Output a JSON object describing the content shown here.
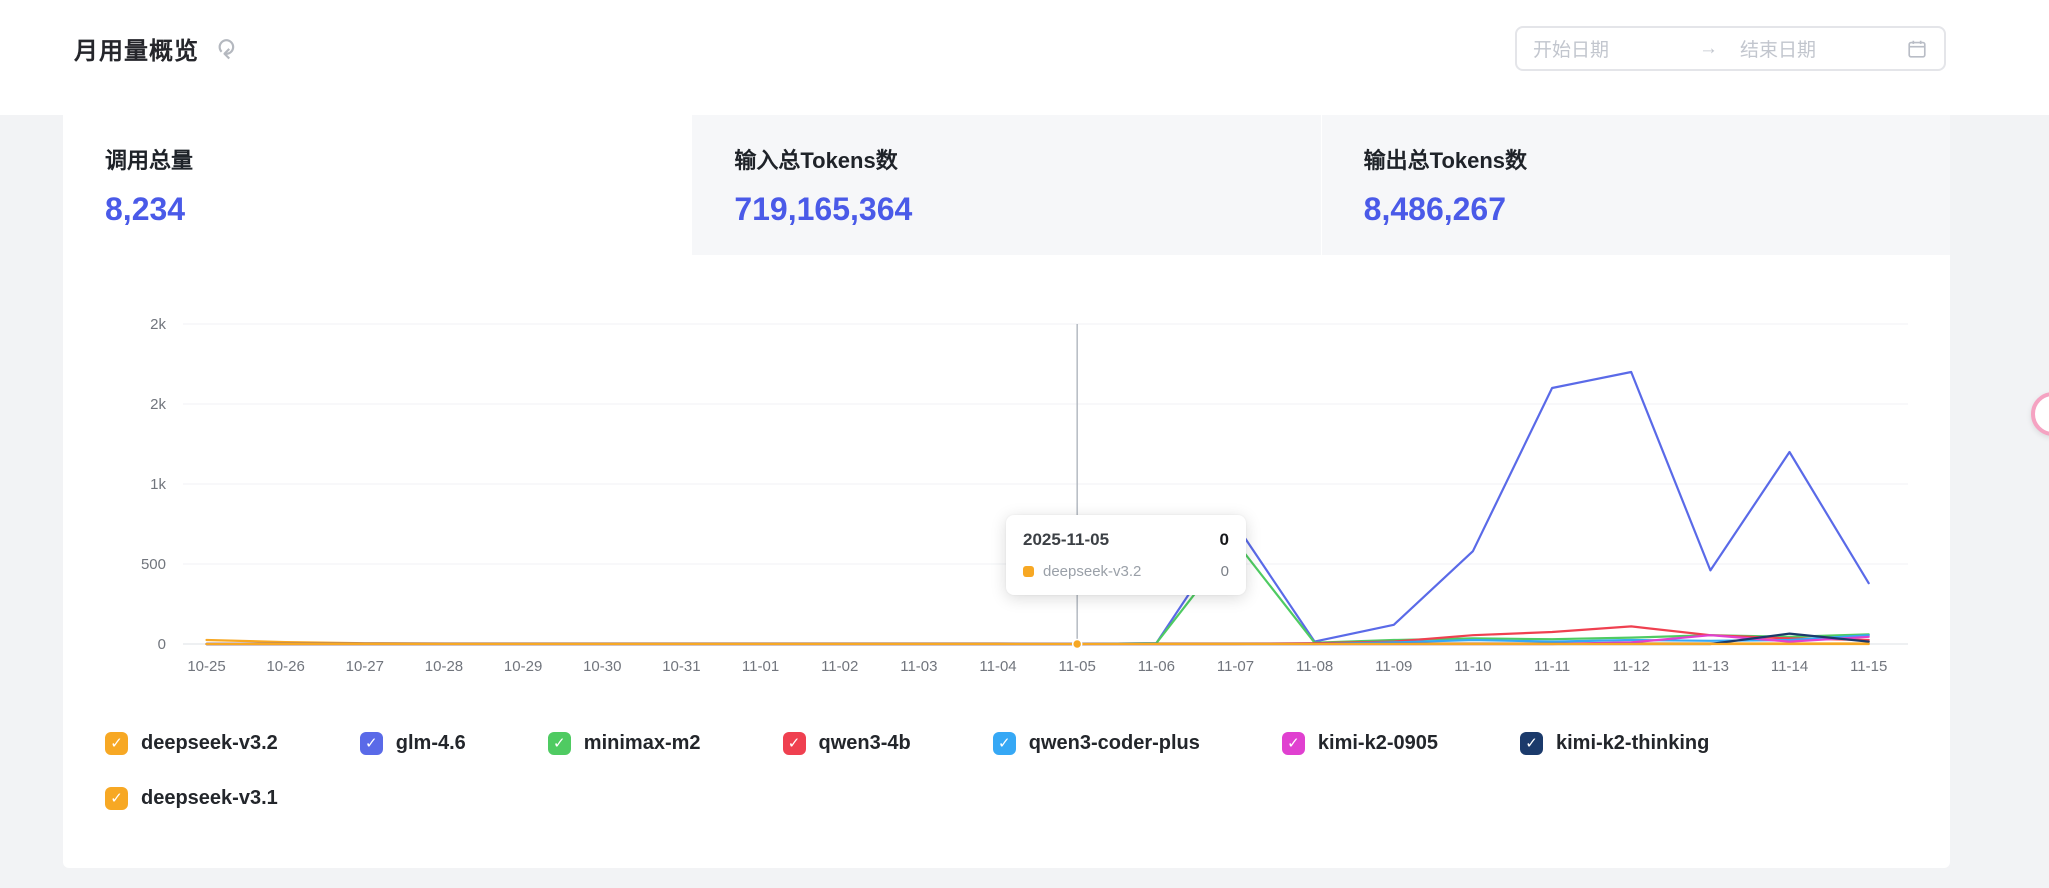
{
  "header": {
    "title": "月用量概览"
  },
  "date_picker": {
    "start_placeholder": "开始日期",
    "end_placeholder": "结束日期"
  },
  "stats": [
    {
      "label": "调用总量",
      "value": "8,234",
      "active": true
    },
    {
      "label": "输入总Tokens数",
      "value": "719,165,364",
      "active": false
    },
    {
      "label": "输出总Tokens数",
      "value": "8,486,267",
      "active": false
    }
  ],
  "colors": {
    "accent": "#4a5ae8",
    "axis_text": "#71757d",
    "grid_line": "#f0f2f5",
    "axis_line": "#dde1e6",
    "highlight_line": "#b4bac2"
  },
  "tooltip": {
    "date": "2025-11-05",
    "total_value": "0",
    "series_name": "deepseek-v3.2",
    "series_value": "0",
    "marker_color": "#f7a824"
  },
  "chart_data": {
    "type": "line",
    "title": "月用量概览",
    "x": [
      "10-25",
      "10-26",
      "10-27",
      "10-28",
      "10-29",
      "10-30",
      "10-31",
      "11-01",
      "11-02",
      "11-03",
      "11-04",
      "11-05",
      "11-06",
      "11-07",
      "11-08",
      "11-09",
      "11-10",
      "11-11",
      "11-12",
      "11-13",
      "11-14",
      "11-15"
    ],
    "ylim": [
      0,
      2000
    ],
    "y_ticks": [
      {
        "value": 2000,
        "label": "2k"
      },
      {
        "value": 1500,
        "label": "2k"
      },
      {
        "value": 1000,
        "label": "1k"
      },
      {
        "value": 500,
        "label": "500"
      },
      {
        "value": 0,
        "label": "0"
      }
    ],
    "highlight_x": "11-05",
    "grid": true,
    "legend_position": "bottom",
    "series": [
      {
        "name": "deepseek-v3.2",
        "color": "#f7a824",
        "values": [
          25,
          12,
          5,
          3,
          3,
          3,
          3,
          3,
          3,
          3,
          3,
          0,
          3,
          3,
          3,
          3,
          3,
          3,
          3,
          3,
          3,
          3
        ]
      },
      {
        "name": "glm-4.6",
        "color": "#5a6ae8",
        "values": [
          0,
          0,
          0,
          0,
          0,
          0,
          0,
          0,
          0,
          0,
          0,
          0,
          5,
          750,
          15,
          120,
          580,
          1600,
          1700,
          460,
          1200,
          380
        ]
      },
      {
        "name": "minimax-m2",
        "color": "#4fcb62",
        "values": [
          0,
          0,
          0,
          0,
          0,
          0,
          0,
          0,
          0,
          0,
          0,
          0,
          5,
          640,
          8,
          25,
          35,
          30,
          40,
          55,
          45,
          60
        ]
      },
      {
        "name": "qwen3-4b",
        "color": "#ef4050",
        "values": [
          0,
          0,
          0,
          0,
          0,
          0,
          0,
          0,
          0,
          0,
          0,
          0,
          0,
          0,
          5,
          15,
          55,
          75,
          110,
          55,
          35,
          25
        ]
      },
      {
        "name": "qwen3-coder-plus",
        "color": "#36a8f5",
        "values": [
          0,
          0,
          0,
          0,
          0,
          0,
          0,
          0,
          0,
          0,
          0,
          0,
          0,
          0,
          0,
          10,
          25,
          15,
          25,
          20,
          25,
          55
        ]
      },
      {
        "name": "kimi-k2-0905",
        "color": "#e040d0",
        "values": [
          0,
          0,
          0,
          0,
          0,
          0,
          0,
          0,
          0,
          0,
          0,
          0,
          0,
          0,
          0,
          0,
          0,
          0,
          10,
          55,
          15,
          45
        ]
      },
      {
        "name": "kimi-k2-thinking",
        "color": "#1b3a6b",
        "values": [
          0,
          0,
          0,
          0,
          0,
          0,
          0,
          0,
          0,
          0,
          0,
          0,
          0,
          0,
          0,
          0,
          0,
          0,
          0,
          0,
          65,
          15
        ]
      },
      {
        "name": "deepseek-v3.1",
        "color": "#f7a824",
        "values": [
          0,
          0,
          0,
          0,
          0,
          0,
          0,
          0,
          0,
          0,
          0,
          0,
          0,
          0,
          0,
          0,
          0,
          0,
          0,
          0,
          0,
          0
        ]
      }
    ]
  },
  "legend": {
    "items": [
      {
        "name": "deepseek-v3.2",
        "color": "#f7a824",
        "checked": true
      },
      {
        "name": "glm-4.6",
        "color": "#5a6ae8",
        "checked": true
      },
      {
        "name": "minimax-m2",
        "color": "#4fcb62",
        "checked": true
      },
      {
        "name": "qwen3-4b",
        "color": "#ef4050",
        "checked": true
      },
      {
        "name": "qwen3-coder-plus",
        "color": "#36a8f5",
        "checked": true
      },
      {
        "name": "kimi-k2-0905",
        "color": "#e040d0",
        "checked": true
      },
      {
        "name": "kimi-k2-thinking",
        "color": "#1b3a6b",
        "checked": true
      },
      {
        "name": "deepseek-v3.1",
        "color": "#f7a824",
        "checked": true
      }
    ]
  }
}
